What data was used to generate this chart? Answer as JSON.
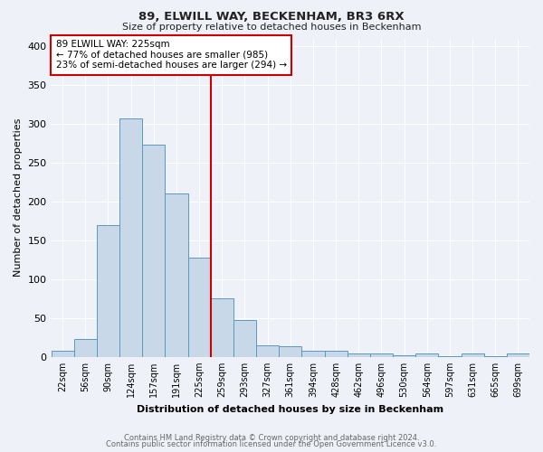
{
  "title": "89, ELWILL WAY, BECKENHAM, BR3 6RX",
  "subtitle": "Size of property relative to detached houses in Beckenham",
  "xlabel": "Distribution of detached houses by size in Beckenham",
  "ylabel": "Number of detached properties",
  "footer1": "Contains HM Land Registry data © Crown copyright and database right 2024.",
  "footer2": "Contains public sector information licensed under the Open Government Licence v3.0.",
  "bin_labels": [
    "22sqm",
    "56sqm",
    "90sqm",
    "124sqm",
    "157sqm",
    "191sqm",
    "225sqm",
    "259sqm",
    "293sqm",
    "327sqm",
    "361sqm",
    "394sqm",
    "428sqm",
    "462sqm",
    "496sqm",
    "530sqm",
    "564sqm",
    "597sqm",
    "631sqm",
    "665sqm",
    "699sqm"
  ],
  "bar_heights": [
    8,
    23,
    170,
    307,
    273,
    210,
    128,
    75,
    48,
    15,
    14,
    8,
    8,
    4,
    4,
    2,
    4,
    1,
    4,
    1,
    4
  ],
  "bar_color": "#c8d8e8",
  "bar_edge_color": "#5a9abf",
  "highlight_bar_index": 6,
  "highlight_line_color": "#cc0000",
  "annotation_title": "89 ELWILL WAY: 225sqm",
  "annotation_line1": "← 77% of detached houses are smaller (985)",
  "annotation_line2": "23% of semi-detached houses are larger (294) →",
  "annotation_box_color": "#ffffff",
  "annotation_box_edge_color": "#cc0000",
  "background_color": "#eef2f8",
  "plot_background": "#eef2f8",
  "ylim": [
    0,
    410
  ],
  "xlim_left": -0.5,
  "xlim_right": 20.5,
  "yticks": [
    0,
    50,
    100,
    150,
    200,
    250,
    300,
    350,
    400
  ]
}
